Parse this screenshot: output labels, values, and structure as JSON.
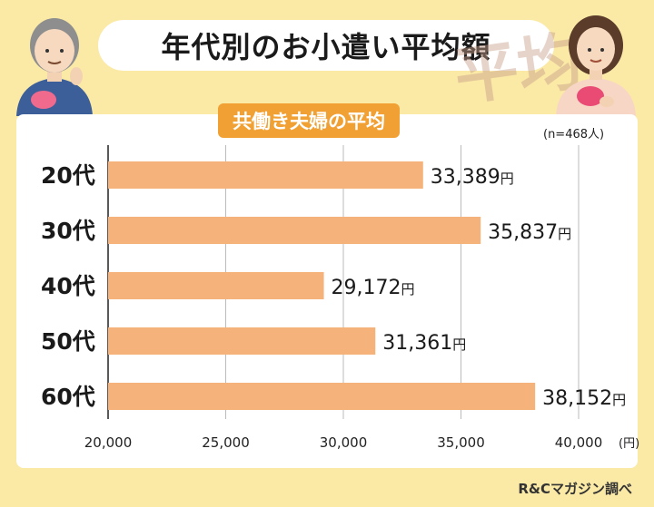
{
  "title": "年代別のお小遣い平均額",
  "subtitle": "共働き夫婦の平均",
  "sample_note": "(n=468人)",
  "stamp_text": "平均",
  "credit": "R&Cマガジン調べ",
  "colors": {
    "bar": "#f5b27a",
    "accent": "#f1a033",
    "background": "#fbe9a6"
  },
  "chart_data": {
    "type": "bar",
    "orientation": "horizontal",
    "categories": [
      "20代",
      "30代",
      "40代",
      "50代",
      "60代"
    ],
    "values": [
      33389,
      35837,
      29172,
      31361,
      38152
    ],
    "value_labels": [
      "33,389",
      "35,837",
      "29,172",
      "31,361",
      "38,152"
    ],
    "value_unit": "円",
    "xlim": [
      20000,
      40000
    ],
    "x_ticks": [
      20000,
      25000,
      30000,
      35000,
      40000
    ],
    "x_tick_labels": [
      "20,000",
      "25,000",
      "30,000",
      "35,000",
      "40,000"
    ],
    "x_unit": "(円)",
    "grid": true
  }
}
